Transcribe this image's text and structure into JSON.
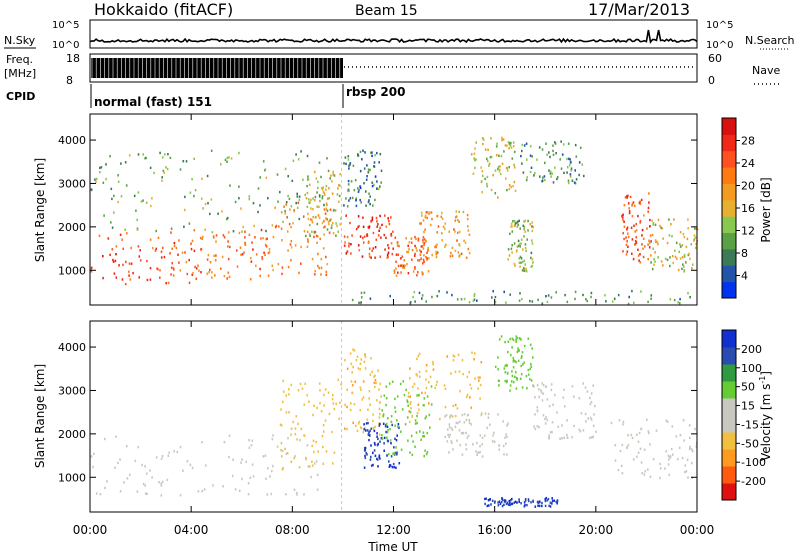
{
  "header": {
    "title": "Hokkaido (fitACF)",
    "beam": "Beam 15",
    "date": "17/Mar/2013"
  },
  "top_panels": {
    "nsky_label": "N.Sky",
    "nsearch_label": "N.Search",
    "noise_ticks": [
      "10^5",
      "10^0"
    ],
    "freq_label_line1": "Freq.",
    "freq_label_line2": "[MHz]",
    "freq_ticks": [
      "18",
      "8"
    ],
    "nave_label": "Nave",
    "nave_ticks": [
      "60",
      "0"
    ],
    "cpid_label": "CPID",
    "cpid_modes": [
      {
        "label": "normal (fast) 151",
        "start_hour": 0,
        "end_hour": 9.95
      },
      {
        "label": "rbsp 200",
        "start_hour": 9.95,
        "end_hour": 24
      }
    ]
  },
  "power_scale": {
    "label": "Power [dB]",
    "ticks": [
      "4",
      "8",
      "12",
      "16",
      "20",
      "24",
      "28"
    ],
    "colors": [
      "#0033ee",
      "#2255aa",
      "#3a7a55",
      "#5aa045",
      "#88c850",
      "#e8b030",
      "#f39a20",
      "#ff7a10",
      "#ff5020",
      "#f02818",
      "#d81010"
    ]
  },
  "velocity_scale": {
    "label": "Velocity [m s",
    "label_exp": "-1",
    "label_end": "]",
    "ticks": [
      "-200",
      "-100",
      "-50",
      "-15",
      "15",
      "50",
      "100",
      "200"
    ],
    "colors": [
      "#e01010",
      "#ff5a10",
      "#ff9a20",
      "#f2c040",
      "#c8c8c0",
      "#c8c8c0",
      "#66cc33",
      "#2f9a40",
      "#2a4cb0",
      "#1030d0"
    ]
  },
  "chart_data": [
    {
      "type": "heatmap",
      "name": "power",
      "ylabel": "Slant Range [km]",
      "y_ticks": [
        1000,
        2000,
        3000,
        4000
      ],
      "ylim": [
        200,
        4600
      ],
      "xlim": [
        0,
        24
      ],
      "regions": [
        {
          "t0": 0.0,
          "t1": 4.0,
          "r0": 700,
          "r1": 1900,
          "level": 24
        },
        {
          "t0": 4.0,
          "t1": 7.0,
          "r0": 800,
          "r1": 2000,
          "level": 22
        },
        {
          "t0": 7.0,
          "t1": 9.5,
          "r0": 900,
          "r1": 2600,
          "level": 20
        },
        {
          "t0": 8.5,
          "t1": 9.9,
          "r0": 1800,
          "r1": 3300,
          "level": 14
        },
        {
          "t0": 0.0,
          "t1": 9.9,
          "r0": 1900,
          "r1": 3800,
          "level": 10
        },
        {
          "t0": 10.0,
          "t1": 11.5,
          "r0": 2500,
          "r1": 3800,
          "level": 6
        },
        {
          "t0": 10.0,
          "t1": 12.0,
          "r0": 1300,
          "r1": 2300,
          "level": 26
        },
        {
          "t0": 12.0,
          "t1": 13.5,
          "r0": 900,
          "r1": 1800,
          "level": 22
        },
        {
          "t0": 13.0,
          "t1": 15.0,
          "r0": 1300,
          "r1": 2400,
          "level": 18
        },
        {
          "t0": 15.0,
          "t1": 16.8,
          "r0": 2700,
          "r1": 4100,
          "level": 14
        },
        {
          "t0": 16.5,
          "t1": 17.5,
          "r0": 1000,
          "r1": 2200,
          "level": 12
        },
        {
          "t0": 17.0,
          "t1": 19.5,
          "r0": 3000,
          "r1": 4000,
          "level": 8
        },
        {
          "t0": 21.0,
          "t1": 22.2,
          "r0": 1200,
          "r1": 2800,
          "level": 24
        },
        {
          "t0": 22.0,
          "t1": 24.0,
          "r0": 1000,
          "r1": 2200,
          "level": 14
        },
        {
          "t0": 10.0,
          "t1": 24.0,
          "r0": 250,
          "r1": 550,
          "level": 8
        }
      ]
    },
    {
      "type": "heatmap",
      "name": "velocity",
      "ylabel": "Slant Range [km]",
      "y_ticks": [
        1000,
        2000,
        3000,
        4000
      ],
      "ylim": [
        200,
        4600
      ],
      "xlim": [
        0,
        24
      ],
      "regions": [
        {
          "t0": 0.0,
          "t1": 9.0,
          "r0": 600,
          "r1": 2000,
          "level": 0
        },
        {
          "t0": 7.5,
          "t1": 9.9,
          "r0": 1200,
          "r1": 3300,
          "level": -30
        },
        {
          "t0": 10.0,
          "t1": 11.5,
          "r0": 2000,
          "r1": 4000,
          "level": -40
        },
        {
          "t0": 10.8,
          "t1": 12.2,
          "r0": 1200,
          "r1": 2300,
          "level": 200
        },
        {
          "t0": 11.5,
          "t1": 13.5,
          "r0": 1500,
          "r1": 3300,
          "level": 30
        },
        {
          "t0": 12.5,
          "t1": 15.5,
          "r0": 2300,
          "r1": 4000,
          "level": -40
        },
        {
          "t0": 14.0,
          "t1": 16.5,
          "r0": 1500,
          "r1": 2500,
          "level": 0
        },
        {
          "t0": 16.0,
          "t1": 17.5,
          "r0": 3000,
          "r1": 4300,
          "level": 30
        },
        {
          "t0": 17.5,
          "t1": 20.0,
          "r0": 1900,
          "r1": 3200,
          "level": 0
        },
        {
          "t0": 20.5,
          "t1": 24.0,
          "r0": 1000,
          "r1": 2400,
          "level": 0
        },
        {
          "t0": 15.5,
          "t1": 18.5,
          "r0": 350,
          "r1": 550,
          "level": 200
        }
      ]
    }
  ],
  "x_axis": {
    "label": "Time UT",
    "ticks": [
      "00:00",
      "04:00",
      "08:00",
      "12:00",
      "16:00",
      "20:00",
      "00:00"
    ]
  }
}
